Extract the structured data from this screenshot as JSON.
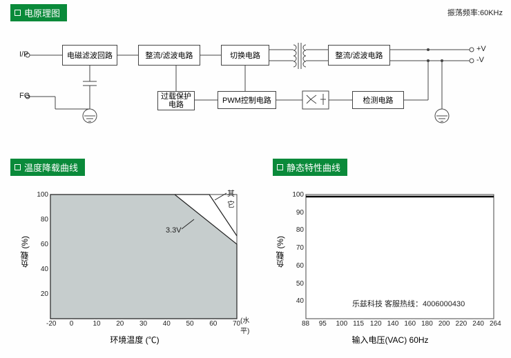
{
  "header1": "电原理图",
  "top_right": "振荡频率:60KHz",
  "blocks": {
    "b1": "电磁滤波回路",
    "b2": "整流/滤波电路",
    "b3": "切换电路",
    "b4": "整流/滤波电路",
    "b5": "过载保护\n电路",
    "b6": "PWM控制电路",
    "b7": "检测电路"
  },
  "labels": {
    "ip": "I/P",
    "fg": "FG",
    "vpos": "+V",
    "vneg": "-V"
  },
  "header2": "温度降载曲线",
  "header3": "静态特性曲线",
  "chart1": {
    "ylabel": "负载 (%)",
    "xlabel": "环境温度 (℃)",
    "xticks": [
      "-20",
      "0",
      "10",
      "20",
      "30",
      "40",
      "50",
      "60",
      "70"
    ],
    "yticks": [
      "20",
      "40",
      "60",
      "80",
      "100"
    ],
    "xnote": "(水平)",
    "ann1": "其它",
    "ann2": "3.3V",
    "fill_color": "#c6cdcd",
    "poly_main": "0,0 180,0 270,72 270,180 0,180",
    "line2_path": "M180,0 L230,0 L270,60"
  },
  "chart2": {
    "ylabel": "负载 (%)",
    "xlabel": "输入电压(VAC) 60Hz",
    "xticks": [
      "88",
      "95",
      "100",
      "115",
      "120",
      "140",
      "160",
      "180",
      "200",
      "220",
      "240",
      "264"
    ],
    "yticks": [
      "40",
      "50",
      "60",
      "70",
      "80",
      "90",
      "100"
    ],
    "line_y": 3
  },
  "footer": "乐兹科技 客服热线：4006000430",
  "colors": {
    "header_bg": "#0a8a3a",
    "stroke": "#444444"
  }
}
